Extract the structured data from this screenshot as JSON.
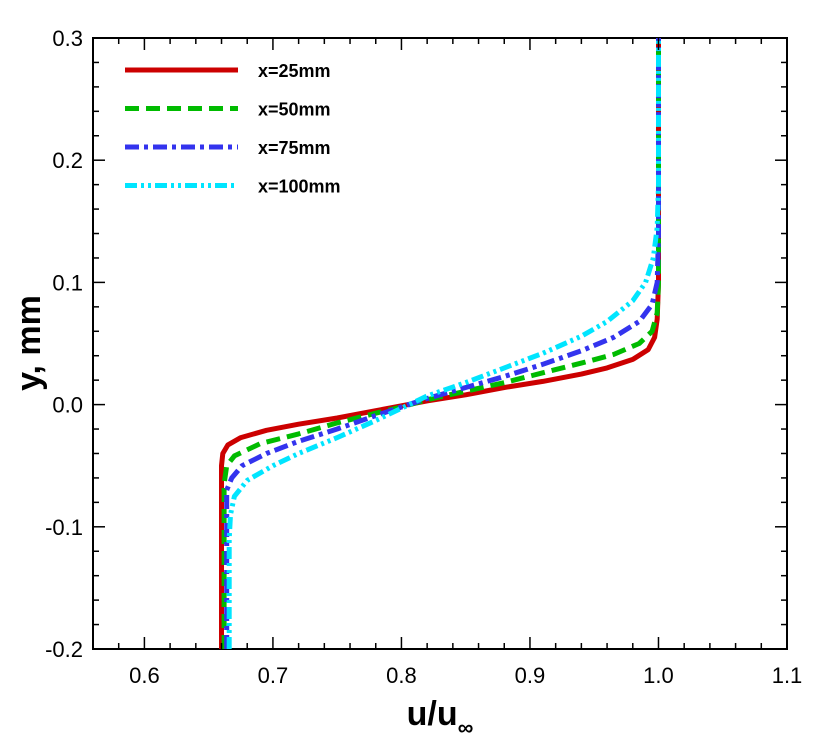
{
  "chart_data": {
    "type": "line",
    "title": "",
    "xlabel": "u/u",
    "xlabel_subscript": "∞",
    "ylabel": "y, mm",
    "xlim": [
      0.56,
      1.1
    ],
    "ylim": [
      -0.2,
      0.3
    ],
    "xticks": [
      0.6,
      0.7,
      0.8,
      0.9,
      1.0,
      1.1
    ],
    "xtick_labels": [
      "0.6",
      "0.7",
      "0.8",
      "0.9",
      "1.0",
      "1.1"
    ],
    "yticks": [
      -0.2,
      -0.1,
      0.0,
      0.1,
      0.2,
      0.3
    ],
    "ytick_labels": [
      "-0.2",
      "-0.1",
      "0.0",
      "0.1",
      "0.2",
      "0.3"
    ],
    "legend_position": "top-left",
    "grid": false,
    "series": [
      {
        "name": "x=25mm",
        "color": "#cc0000",
        "style": "solid",
        "points": [
          [
            0.66,
            -0.2
          ],
          [
            0.66,
            -0.15
          ],
          [
            0.66,
            -0.1
          ],
          [
            0.66,
            -0.05
          ],
          [
            0.661,
            -0.04
          ],
          [
            0.665,
            -0.033
          ],
          [
            0.675,
            -0.027
          ],
          [
            0.695,
            -0.021
          ],
          [
            0.72,
            -0.016
          ],
          [
            0.75,
            -0.011
          ],
          [
            0.78,
            -0.005
          ],
          [
            0.8,
            -0.001
          ],
          [
            0.82,
            0.003
          ],
          [
            0.85,
            0.008
          ],
          [
            0.88,
            0.014
          ],
          [
            0.91,
            0.019
          ],
          [
            0.94,
            0.025
          ],
          [
            0.96,
            0.03
          ],
          [
            0.98,
            0.037
          ],
          [
            0.992,
            0.045
          ],
          [
            0.997,
            0.055
          ],
          [
            0.999,
            0.07
          ],
          [
            1.0,
            0.1
          ],
          [
            1.0,
            0.2
          ],
          [
            1.0,
            0.3
          ]
        ]
      },
      {
        "name": "x=50mm",
        "color": "#00bb00",
        "style": "dashed",
        "points": [
          [
            0.662,
            -0.2
          ],
          [
            0.662,
            -0.15
          ],
          [
            0.662,
            -0.1
          ],
          [
            0.662,
            -0.065
          ],
          [
            0.664,
            -0.05
          ],
          [
            0.67,
            -0.042
          ],
          [
            0.69,
            -0.032
          ],
          [
            0.72,
            -0.024
          ],
          [
            0.75,
            -0.015
          ],
          [
            0.78,
            -0.007
          ],
          [
            0.8,
            -0.002
          ],
          [
            0.82,
            0.004
          ],
          [
            0.85,
            0.011
          ],
          [
            0.88,
            0.018
          ],
          [
            0.91,
            0.026
          ],
          [
            0.94,
            0.034
          ],
          [
            0.965,
            0.041
          ],
          [
            0.985,
            0.05
          ],
          [
            0.995,
            0.06
          ],
          [
            0.999,
            0.075
          ],
          [
            1.0,
            0.1
          ],
          [
            1.0,
            0.2
          ],
          [
            1.0,
            0.3
          ]
        ]
      },
      {
        "name": "x=75mm",
        "color": "#3333ee",
        "style": "dashdot",
        "points": [
          [
            0.664,
            -0.2
          ],
          [
            0.664,
            -0.15
          ],
          [
            0.664,
            -0.1
          ],
          [
            0.664,
            -0.07
          ],
          [
            0.668,
            -0.06
          ],
          [
            0.676,
            -0.05
          ],
          [
            0.695,
            -0.04
          ],
          [
            0.72,
            -0.03
          ],
          [
            0.75,
            -0.02
          ],
          [
            0.78,
            -0.009
          ],
          [
            0.8,
            -0.002
          ],
          [
            0.82,
            0.005
          ],
          [
            0.85,
            0.014
          ],
          [
            0.88,
            0.023
          ],
          [
            0.91,
            0.033
          ],
          [
            0.94,
            0.044
          ],
          [
            0.965,
            0.055
          ],
          [
            0.985,
            0.068
          ],
          [
            0.995,
            0.082
          ],
          [
            0.999,
            0.1
          ],
          [
            1.0,
            0.14
          ],
          [
            1.0,
            0.2
          ],
          [
            1.0,
            0.3
          ]
        ]
      },
      {
        "name": "x=100mm",
        "color": "#00e5ff",
        "style": "dashdotdot",
        "points": [
          [
            0.666,
            -0.2
          ],
          [
            0.666,
            -0.15
          ],
          [
            0.666,
            -0.11
          ],
          [
            0.667,
            -0.09
          ],
          [
            0.67,
            -0.075
          ],
          [
            0.68,
            -0.062
          ],
          [
            0.7,
            -0.05
          ],
          [
            0.72,
            -0.04
          ],
          [
            0.75,
            -0.027
          ],
          [
            0.78,
            -0.013
          ],
          [
            0.8,
            -0.003
          ],
          [
            0.82,
            0.007
          ],
          [
            0.85,
            0.018
          ],
          [
            0.88,
            0.03
          ],
          [
            0.91,
            0.042
          ],
          [
            0.94,
            0.056
          ],
          [
            0.96,
            0.068
          ],
          [
            0.98,
            0.085
          ],
          [
            0.99,
            0.1
          ],
          [
            0.996,
            0.12
          ],
          [
            0.999,
            0.145
          ],
          [
            1.0,
            0.18
          ],
          [
            1.0,
            0.2
          ],
          [
            1.0,
            0.3
          ]
        ]
      }
    ]
  }
}
